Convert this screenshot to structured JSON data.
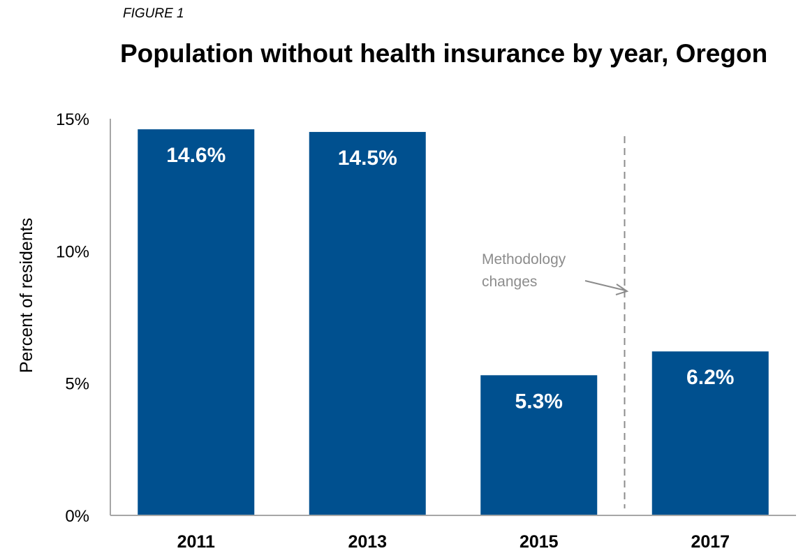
{
  "header": {
    "figure_label": "FIGURE 1"
  },
  "chart_data": {
    "type": "bar",
    "title": "Population without health insurance by year, Oregon",
    "xlabel": "",
    "ylabel": "Percent of residents",
    "categories": [
      "2011",
      "2013",
      "2015",
      "2017"
    ],
    "values": [
      14.6,
      14.5,
      5.3,
      6.2
    ],
    "value_labels": [
      "14.6%",
      "14.5%",
      "5.3%",
      "6.2%"
    ],
    "ylim": [
      0,
      15
    ],
    "y_ticks": [
      0,
      5,
      10,
      15
    ],
    "y_tick_labels": [
      "0%",
      "5%",
      "10%",
      "15%"
    ],
    "grid": false,
    "legend": "none",
    "bar_color": "#00508f",
    "annotation": {
      "lines": [
        "Methodology",
        "changes"
      ],
      "color": "#8c8c8c",
      "marker": "dashed vertical line between 2015 and 2017"
    }
  }
}
